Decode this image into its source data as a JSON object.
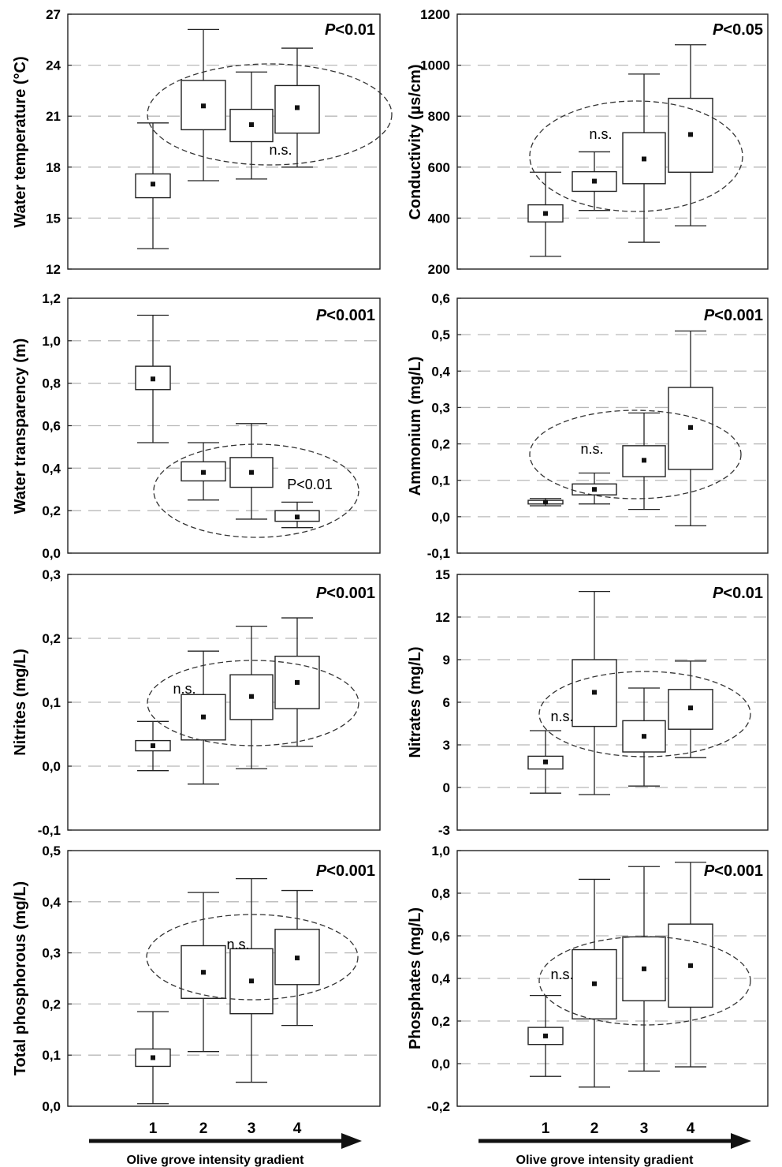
{
  "figure": {
    "x_categories": [
      "1",
      "2",
      "3",
      "4"
    ],
    "x_axis_title": "Olive grove intensity gradient"
  },
  "chart_data": [
    {
      "type": "box",
      "ylabel": "Water temperature (°C)",
      "ylim": [
        12,
        27
      ],
      "yticks": [
        "12",
        "15",
        "18",
        "21",
        "24",
        "27"
      ],
      "categories": [
        "1",
        "2",
        "3",
        "4"
      ],
      "boxes": [
        {
          "whisker_low": 13.2,
          "q1": 16.2,
          "mean": 17.0,
          "q3": 17.6,
          "whisker_high": 20.6
        },
        {
          "whisker_low": 17.2,
          "q1": 20.2,
          "mean": 21.6,
          "q3": 23.1,
          "whisker_high": 26.1
        },
        {
          "whisker_low": 17.3,
          "q1": 19.5,
          "mean": 20.5,
          "q3": 21.4,
          "whisker_high": 23.6
        },
        {
          "whisker_low": 18.0,
          "q1": 20.0,
          "mean": 21.5,
          "q3": 22.8,
          "whisker_high": 25.0
        }
      ],
      "p_value": "P<0.01",
      "ns_label": "n.s.",
      "grid": "dashed horizontal"
    },
    {
      "type": "box",
      "ylabel": "Conductivity (µs/cm)",
      "ylim": [
        200,
        1200
      ],
      "yticks": [
        "200",
        "400",
        "600",
        "800",
        "1000",
        "1200"
      ],
      "categories": [
        "1",
        "2",
        "3",
        "4"
      ],
      "boxes": [
        {
          "whisker_low": 250,
          "q1": 385,
          "mean": 418,
          "q3": 452,
          "whisker_high": 580
        },
        {
          "whisker_low": 430,
          "q1": 505,
          "mean": 545,
          "q3": 582,
          "whisker_high": 660
        },
        {
          "whisker_low": 305,
          "q1": 535,
          "mean": 632,
          "q3": 735,
          "whisker_high": 965
        },
        {
          "whisker_low": 370,
          "q1": 580,
          "mean": 728,
          "q3": 870,
          "whisker_high": 1080
        }
      ],
      "p_value": "P<0.05",
      "ns_label": "n.s.",
      "grid": "dashed horizontal"
    },
    {
      "type": "box",
      "ylabel": "Water transparency (m)",
      "ylim": [
        0,
        1.2
      ],
      "yticks": [
        "0,0",
        "0,2",
        "0,4",
        "0,6",
        "0,8",
        "1,0",
        "1,2"
      ],
      "categories": [
        "1",
        "2",
        "3",
        "4"
      ],
      "boxes": [
        {
          "whisker_low": 0.52,
          "q1": 0.77,
          "mean": 0.82,
          "q3": 0.88,
          "whisker_high": 1.12
        },
        {
          "whisker_low": 0.25,
          "q1": 0.34,
          "mean": 0.38,
          "q3": 0.43,
          "whisker_high": 0.52
        },
        {
          "whisker_low": 0.16,
          "q1": 0.31,
          "mean": 0.38,
          "q3": 0.45,
          "whisker_high": 0.61
        },
        {
          "whisker_low": 0.12,
          "q1": 0.15,
          "mean": 0.17,
          "q3": 0.2,
          "whisker_high": 0.24
        }
      ],
      "p_value": "P<0.001",
      "ns_label": "P<0.01",
      "grid": "dashed horizontal"
    },
    {
      "type": "box",
      "ylabel": "Ammonium (mg/L)",
      "ylim": [
        -0.1,
        0.6
      ],
      "yticks": [
        "-0,1",
        "0,0",
        "0,1",
        "0,2",
        "0,3",
        "0,4",
        "0,5",
        "0,6"
      ],
      "categories": [
        "1",
        "2",
        "3",
        "4"
      ],
      "boxes": [
        {
          "whisker_low": 0.03,
          "q1": 0.035,
          "mean": 0.04,
          "q3": 0.045,
          "whisker_high": 0.05
        },
        {
          "whisker_low": 0.035,
          "q1": 0.06,
          "mean": 0.075,
          "q3": 0.09,
          "whisker_high": 0.12
        },
        {
          "whisker_low": 0.02,
          "q1": 0.11,
          "mean": 0.155,
          "q3": 0.195,
          "whisker_high": 0.285
        },
        {
          "whisker_low": -0.025,
          "q1": 0.13,
          "mean": 0.245,
          "q3": 0.355,
          "whisker_high": 0.51
        }
      ],
      "p_value": "P<0.001",
      "ns_label": "n.s.",
      "grid": "dashed horizontal"
    },
    {
      "type": "box",
      "ylabel": "Nitrites (mg/L)",
      "ylim": [
        -0.1,
        0.3
      ],
      "yticks": [
        "-0,1",
        "0,0",
        "0,1",
        "0,2",
        "0,3"
      ],
      "categories": [
        "1",
        "2",
        "3",
        "4"
      ],
      "boxes": [
        {
          "whisker_low": -0.007,
          "q1": 0.024,
          "mean": 0.032,
          "q3": 0.04,
          "whisker_high": 0.07
        },
        {
          "whisker_low": -0.028,
          "q1": 0.041,
          "mean": 0.077,
          "q3": 0.112,
          "whisker_high": 0.18
        },
        {
          "whisker_low": -0.004,
          "q1": 0.073,
          "mean": 0.109,
          "q3": 0.143,
          "whisker_high": 0.219
        },
        {
          "whisker_low": 0.031,
          "q1": 0.09,
          "mean": 0.131,
          "q3": 0.172,
          "whisker_high": 0.232
        }
      ],
      "p_value": "P<0.001",
      "ns_label": "n.s.",
      "grid": "dashed horizontal"
    },
    {
      "type": "box",
      "ylabel": "Nitrates (mg/L)",
      "ylim": [
        -3,
        15
      ],
      "yticks": [
        "-3",
        "0",
        "3",
        "6",
        "9",
        "12",
        "15"
      ],
      "categories": [
        "1",
        "2",
        "3",
        "4"
      ],
      "boxes": [
        {
          "whisker_low": -0.4,
          "q1": 1.3,
          "mean": 1.8,
          "q3": 2.2,
          "whisker_high": 4.0
        },
        {
          "whisker_low": -0.5,
          "q1": 4.3,
          "mean": 6.7,
          "q3": 9.0,
          "whisker_high": 13.8
        },
        {
          "whisker_low": 0.1,
          "q1": 2.5,
          "mean": 3.6,
          "q3": 4.7,
          "whisker_high": 7.0
        },
        {
          "whisker_low": 2.1,
          "q1": 4.1,
          "mean": 5.6,
          "q3": 6.9,
          "whisker_high": 8.9
        }
      ],
      "p_value": "P<0.01",
      "ns_label": "n.s.",
      "grid": "dashed horizontal"
    },
    {
      "type": "box",
      "ylabel": "Total phosphorous (mg/L)",
      "ylim": [
        0,
        0.5
      ],
      "yticks": [
        "0,0",
        "0,1",
        "0,2",
        "0,3",
        "0,4",
        "0,5"
      ],
      "categories": [
        "1",
        "2",
        "3",
        "4"
      ],
      "boxes": [
        {
          "whisker_low": 0.005,
          "q1": 0.078,
          "mean": 0.095,
          "q3": 0.112,
          "whisker_high": 0.185
        },
        {
          "whisker_low": 0.107,
          "q1": 0.211,
          "mean": 0.262,
          "q3": 0.314,
          "whisker_high": 0.418
        },
        {
          "whisker_low": 0.047,
          "q1": 0.181,
          "mean": 0.245,
          "q3": 0.308,
          "whisker_high": 0.445
        },
        {
          "whisker_low": 0.158,
          "q1": 0.238,
          "mean": 0.29,
          "q3": 0.346,
          "whisker_high": 0.422
        }
      ],
      "p_value": "P<0.001",
      "ns_label": "n.s.",
      "grid": "dashed horizontal"
    },
    {
      "type": "box",
      "ylabel": "Phosphates (mg/L)",
      "ylim": [
        -0.2,
        1.0
      ],
      "yticks": [
        "-0,2",
        "0,0",
        "0,2",
        "0,4",
        "0,6",
        "0,8",
        "1,0"
      ],
      "categories": [
        "1",
        "2",
        "3",
        "4"
      ],
      "boxes": [
        {
          "whisker_low": -0.06,
          "q1": 0.09,
          "mean": 0.13,
          "q3": 0.17,
          "whisker_high": 0.32
        },
        {
          "whisker_low": -0.11,
          "q1": 0.21,
          "mean": 0.375,
          "q3": 0.535,
          "whisker_high": 0.865
        },
        {
          "whisker_low": -0.035,
          "q1": 0.295,
          "mean": 0.445,
          "q3": 0.595,
          "whisker_high": 0.925
        },
        {
          "whisker_low": -0.015,
          "q1": 0.265,
          "mean": 0.46,
          "q3": 0.655,
          "whisker_high": 0.945
        }
      ],
      "p_value": "P<0.001",
      "ns_label": "n.s.",
      "grid": "dashed horizontal"
    }
  ]
}
